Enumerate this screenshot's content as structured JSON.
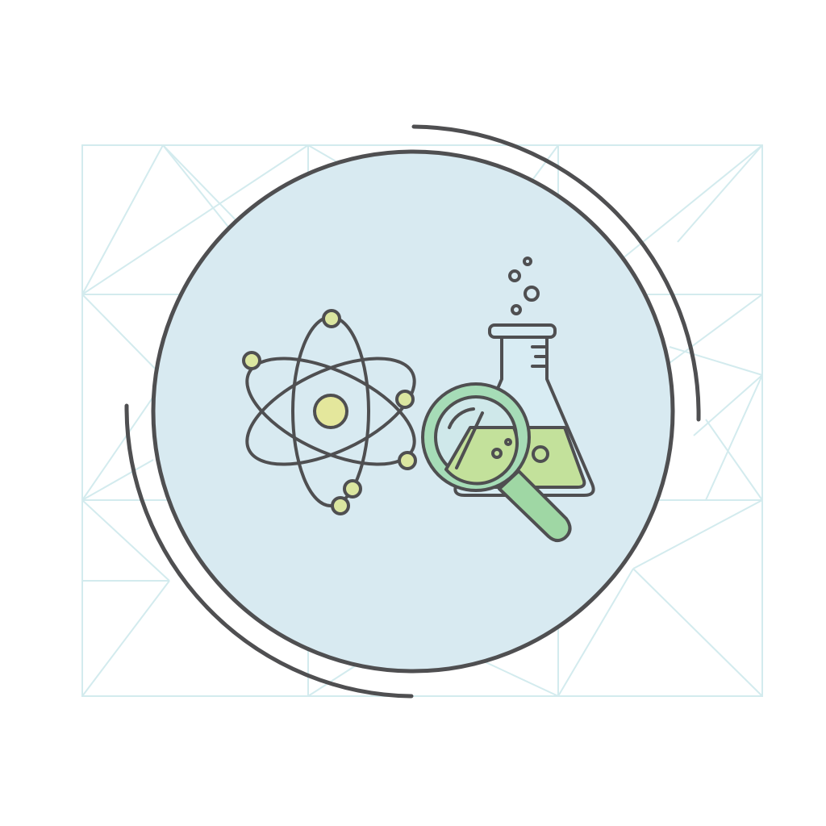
{
  "illustration": {
    "subjects": [
      "atom-icon",
      "flask-icon",
      "magnifying-glass-icon"
    ],
    "decor": [
      "triangle-grid-background",
      "badge-circle",
      "orbit-arc-top-right",
      "orbit-arc-bottom-left"
    ]
  },
  "colors": {
    "page_background": "#ffffff",
    "grid_line": "#d3ebee",
    "badge_fill": "#d8eaf1",
    "outline": "#4f4f51",
    "nucleus_fill": "#e4e79c",
    "electron_fill": "#dbe6a0",
    "flask_glass": "#d8ecf3",
    "liquid_fill": "#c3e19b",
    "lens_ring": "#a6dcb7",
    "lens_glass": "#cfe8ea",
    "handle_fill": "#9fd7a4"
  }
}
